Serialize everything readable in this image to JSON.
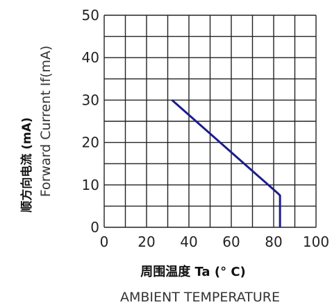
{
  "chart_data": {
    "type": "line",
    "xlabel_cn": "周围温度 Ta (° C)",
    "xlabel": "AMBIENT TEMPERATURE",
    "ylabel_cn": "顺方向电流 (mA)",
    "ylabel": "Forward Current If(mA)",
    "xlim": [
      0,
      100
    ],
    "ylim": [
      0,
      50
    ],
    "x_ticks": [
      "0",
      "20",
      "40",
      "60",
      "80",
      "100"
    ],
    "y_ticks": [
      "0",
      "10",
      "20",
      "30",
      "40",
      "50"
    ],
    "grid": true,
    "series": [
      {
        "x": [
          32,
          82,
          83,
          83
        ],
        "y": [
          30,
          8,
          7.5,
          0
        ]
      }
    ],
    "colors": {
      "line": "#1c1c8c",
      "grid": "#222222"
    }
  }
}
